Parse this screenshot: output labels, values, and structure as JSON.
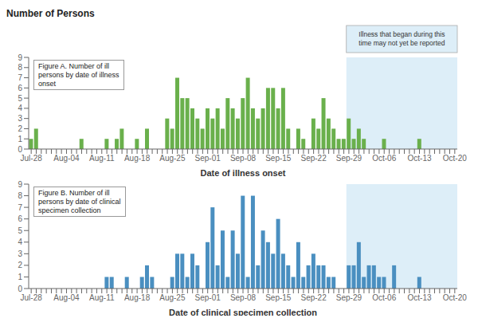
{
  "chart_data": [
    {
      "type": "bar",
      "title": "Number of Persons",
      "xlabel": "Date of illness onset",
      "categories": [
        "Jul-28",
        null,
        null,
        null,
        null,
        null,
        null,
        "Aug-04",
        null,
        null,
        null,
        null,
        null,
        null,
        "Aug-11",
        null,
        null,
        null,
        null,
        null,
        null,
        "Aug-18",
        null,
        null,
        null,
        null,
        null,
        null,
        "Aug-25",
        null,
        null,
        null,
        null,
        null,
        null,
        "Sep-01",
        null,
        null,
        null,
        null,
        null,
        null,
        "Sep-08",
        null,
        null,
        null,
        null,
        null,
        null,
        "Sep-15",
        null,
        null,
        null,
        null,
        null,
        null,
        "Sep-22",
        null,
        null,
        null,
        null,
        null,
        null,
        "Sep-29",
        null,
        null,
        null,
        null,
        null,
        null,
        "Oct-06",
        null,
        null,
        null,
        null,
        null,
        null,
        "Oct-13",
        null,
        null,
        null,
        null,
        null,
        null,
        "Oct-20"
      ],
      "values": [
        1,
        2,
        0,
        0,
        0,
        0,
        0,
        0,
        0,
        0,
        1,
        0,
        0,
        0,
        0,
        1,
        0,
        1,
        2,
        0,
        0,
        1,
        0,
        2,
        0,
        0,
        0,
        3,
        2,
        7,
        5,
        5,
        4,
        3,
        2,
        4,
        3,
        4,
        2,
        5,
        4,
        3,
        5,
        7,
        4,
        3,
        4,
        6,
        6,
        4,
        6,
        2,
        0,
        2,
        1,
        0,
        3,
        2,
        5,
        3,
        2,
        1,
        1,
        3,
        1,
        2,
        1,
        0,
        0,
        0,
        1,
        0,
        0,
        0,
        0,
        0,
        0,
        1,
        0,
        0,
        0,
        0,
        0,
        0,
        0
      ],
      "color": "#6ab04c",
      "ylim": [
        0,
        9
      ],
      "yticks": [
        0,
        1,
        2,
        3,
        4,
        5,
        6,
        7,
        8,
        9
      ],
      "grid": false,
      "annotations": [
        "Figure A. Number of ill\npersons by date of illness\nonset"
      ],
      "shaded_region": {
        "from": "Sep-29",
        "color": "#ddeef8",
        "label": "Illness that began during this\ntime may not yet be reported"
      }
    },
    {
      "type": "bar",
      "xlabel": "Date of clinical specimen collection",
      "categories": [
        "Jul-28",
        null,
        null,
        null,
        null,
        null,
        null,
        "Aug-04",
        null,
        null,
        null,
        null,
        null,
        null,
        "Aug-11",
        null,
        null,
        null,
        null,
        null,
        null,
        "Aug-18",
        null,
        null,
        null,
        null,
        null,
        null,
        "Aug-25",
        null,
        null,
        null,
        null,
        null,
        null,
        "Sep-01",
        null,
        null,
        null,
        null,
        null,
        null,
        "Sep-08",
        null,
        null,
        null,
        null,
        null,
        null,
        "Sep-15",
        null,
        null,
        null,
        null,
        null,
        null,
        "Sep-22",
        null,
        null,
        null,
        null,
        null,
        null,
        "Sep-29",
        null,
        null,
        null,
        null,
        null,
        null,
        "Oct-06",
        null,
        null,
        null,
        null,
        null,
        null,
        "Oct-13",
        null,
        null,
        null,
        null,
        null,
        null,
        "Oct-20"
      ],
      "values": [
        0,
        0,
        0,
        0,
        0,
        0,
        0,
        0,
        0,
        0,
        0,
        0,
        0,
        0,
        0,
        1,
        1,
        0,
        0,
        1,
        0,
        0,
        1,
        2,
        1,
        0,
        0,
        0,
        1,
        3,
        3,
        1,
        3,
        2,
        0,
        4,
        7,
        2,
        5,
        1,
        5,
        3,
        8,
        1,
        8,
        2,
        5,
        4,
        3,
        6,
        3,
        2,
        1,
        4,
        1,
        2,
        3,
        2,
        2,
        1,
        1,
        0,
        0,
        2,
        2,
        4,
        1,
        2,
        2,
        1,
        1,
        0,
        2,
        0,
        0,
        0,
        0,
        1,
        0,
        0,
        0,
        0,
        0,
        0,
        0
      ],
      "color": "#4a8fc0",
      "ylim": [
        0,
        9
      ],
      "yticks": [
        0,
        1,
        2,
        3,
        4,
        5,
        6,
        7,
        8,
        9
      ],
      "grid": false,
      "annotations": [
        "Figure B. Number of ill\npersons by date of clinical\nspecimen collection"
      ],
      "shaded_region": {
        "from": "Sep-29",
        "color": "#ddeef8"
      }
    }
  ]
}
